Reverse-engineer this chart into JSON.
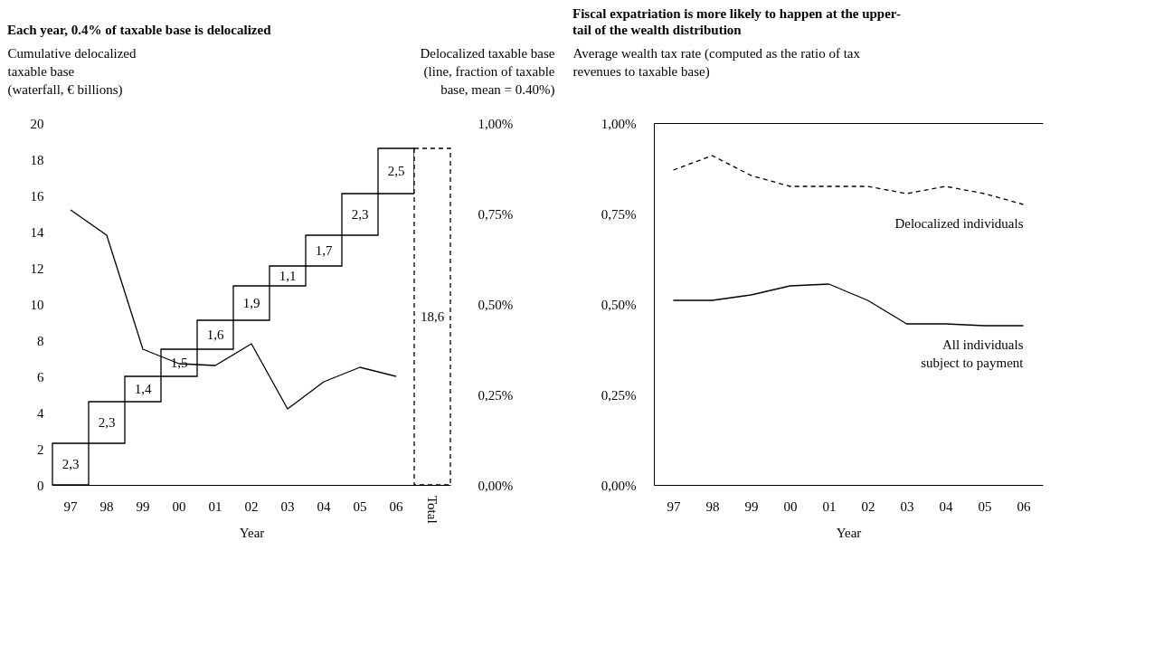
{
  "chart_data": [
    {
      "type": "bar",
      "title": "Each year, 0.4% of taxable base is delocalized",
      "xlabel": "Year",
      "ylabel": "Cumulative delocalized taxable base (waterfall, € billions)",
      "y2label": "Delocalized taxable base (line, fraction of taxable base, mean = 0.40%)",
      "categories": [
        "97",
        "98",
        "99",
        "00",
        "01",
        "02",
        "03",
        "04",
        "05",
        "06",
        "Total"
      ],
      "series": [
        {
          "type": "bar",
          "color": "#000000",
          "values": [
            2.3,
            2.3,
            1.4,
            1.5,
            1.6,
            1.9,
            1.1,
            1.7,
            2.3,
            2.5,
            null
          ],
          "base": [
            0,
            2.3,
            4.6,
            6.0,
            7.5,
            9.1,
            11.0,
            12.1,
            13.8,
            16.1,
            null
          ],
          "value_labels": [
            "2,3",
            "2,3",
            "1,4",
            "1,5",
            "1,6",
            "1,9",
            "1,1",
            "1,7",
            "2,3",
            "2,5",
            null
          ]
        },
        {
          "type": "bar",
          "color": "#000000",
          "line_style": "dashed",
          "values": [
            null,
            null,
            null,
            null,
            null,
            null,
            null,
            null,
            null,
            null,
            18.6
          ],
          "base": [
            null,
            null,
            null,
            null,
            null,
            null,
            null,
            null,
            null,
            null,
            0
          ],
          "value_labels": [
            null,
            null,
            null,
            null,
            null,
            null,
            null,
            null,
            null,
            null,
            "18,6"
          ]
        },
        {
          "type": "line",
          "axis": "y2",
          "color": "#000000",
          "values": [
            0.76,
            0.69,
            0.375,
            0.335,
            0.33,
            0.39,
            0.21,
            0.285,
            0.325,
            0.3,
            null
          ]
        }
      ],
      "ylim": [
        0,
        20
      ],
      "yticks": [
        0,
        2,
        4,
        6,
        8,
        10,
        12,
        14,
        16,
        18,
        20
      ],
      "y2lim": [
        0,
        1
      ],
      "y2ticks": [
        {
          "value": 0,
          "label": "0,00%"
        },
        {
          "value": 0.25,
          "label": "0,25%"
        },
        {
          "value": 0.5,
          "label": "0,50%"
        },
        {
          "value": 0.75,
          "label": "0,75%"
        },
        {
          "value": 1,
          "label": "1,00%"
        }
      ],
      "grid": false
    },
    {
      "type": "line",
      "title": "Fiscal expatriation is more likely to happen at the upper-tail of the wealth distribution",
      "xlabel": "Year",
      "ylabel": "Average wealth tax rate (computed as the ratio of tax revenues to taxable base)",
      "categories": [
        "97",
        "98",
        "99",
        "00",
        "01",
        "02",
        "03",
        "04",
        "05",
        "06"
      ],
      "series": [
        {
          "name": "Delocalized individuals",
          "color": "#000000",
          "line_style": "dashed",
          "values": [
            0.87,
            0.91,
            0.855,
            0.825,
            0.825,
            0.825,
            0.805,
            0.825,
            0.805,
            0.775
          ]
        },
        {
          "name": "All individuals subject to payment",
          "color": "#000000",
          "line_style": "solid",
          "values": [
            0.51,
            0.51,
            0.525,
            0.55,
            0.555,
            0.51,
            0.445,
            0.445,
            0.44,
            0.44
          ]
        }
      ],
      "ylim": [
        0,
        1
      ],
      "yticks": [
        {
          "value": 0,
          "label": "0,00%"
        },
        {
          "value": 0.25,
          "label": "0,25%"
        },
        {
          "value": 0.5,
          "label": "0,50%"
        },
        {
          "value": 0.75,
          "label": "0,75%"
        },
        {
          "value": 1,
          "label": "1,00%"
        }
      ],
      "grid": false
    }
  ]
}
